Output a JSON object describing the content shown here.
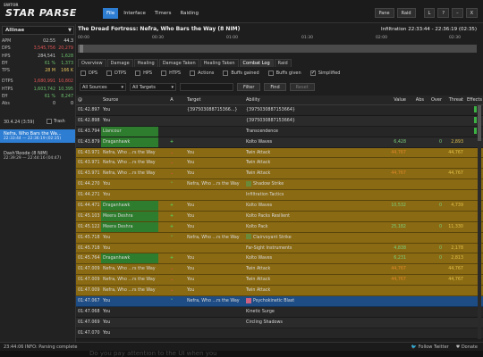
{
  "app": {
    "logo_small": "SWTOR",
    "logo": "STAR PARSE",
    "menu": [
      "File",
      "Interface",
      "Timers",
      "Raiding"
    ],
    "window_buttons": [
      "Pane",
      "Raid",
      "L",
      "?",
      "–",
      "X"
    ]
  },
  "left": {
    "raid_select": "Allinae",
    "stats": [
      {
        "k": "APM",
        "v1": "02:55",
        "v2": "44.3",
        "c1": "",
        "c2": ""
      },
      {
        "k": "DPS",
        "v1": "3,545,756",
        "v2": "20,279",
        "c1": "red",
        "c2": "red"
      },
      {
        "k": "HPS",
        "v1": "284,541",
        "v2": "1,628",
        "c1": "",
        "c2": "green"
      },
      {
        "k": "Eff",
        "v1": "61 %",
        "v2": "1,373",
        "c1": "green",
        "c2": "green"
      },
      {
        "k": "TPS",
        "v1": "28 M",
        "v2": "166 K",
        "c1": "yellow",
        "c2": "yellow"
      },
      {
        "k": "DTPS",
        "v1": "1,680,991",
        "v2": "10,802",
        "c1": "red",
        "c2": "red"
      },
      {
        "k": "HTPS",
        "v1": "1,603,742",
        "v2": "10,395",
        "c1": "green",
        "c2": "green"
      },
      {
        "k": "Eff",
        "v1": "61 %",
        "v2": "8,247",
        "c1": "green",
        "c2": "green"
      },
      {
        "k": "Abs",
        "v1": "0",
        "v2": "0",
        "c1": "",
        "c2": ""
      }
    ],
    "combat_time": "30.4.24 (3:59)",
    "trash_label": "Trash",
    "encounters": [
      {
        "name": "Nefra, Who Bars the Wa...",
        "time": "22:33:44 — 22:36:19 (02:35)",
        "selected": true
      },
      {
        "name": "Dash'Roode (8 NIM)",
        "time": "22:39:29 — 22:44:16 (04:47)",
        "selected": false
      }
    ]
  },
  "header": {
    "title": "The Dread Fortress: Nefra, Who Bars the Way (8 NIM)",
    "infiltration": "Infiltration 22:33:44 - 22:36:19 (02:35)",
    "timeline_labels": [
      "00:00",
      "00:30",
      "01:00",
      "01:30",
      "02:00",
      "02:30"
    ]
  },
  "tabs": [
    "Overview",
    "Damage",
    "Healing",
    "Damage Taken",
    "Healing Taken",
    "Combat Log",
    "Raid"
  ],
  "filters": [
    "DPS",
    "DTPS",
    "HPS",
    "HTPS",
    "Actions",
    "Buffs gained",
    "Buffs given",
    "Simplified"
  ],
  "controls": {
    "sources": "All Sources",
    "targets": "All Targets",
    "filter": "Filter",
    "find": "Find",
    "reset": "Reset"
  },
  "table": {
    "headers": [
      "@",
      "Source",
      "A",
      "Target",
      "Ability",
      "Value",
      "Abs",
      "Over",
      "Threat",
      "Effects"
    ],
    "rows": [
      {
        "ts": "01:42.897",
        "src": "You",
        "arr": "",
        "tgt": "{397503088715366...}",
        "abil": "{3975030887153664}",
        "val": "",
        "abs": "",
        "over": "",
        "thr": "",
        "eff": true,
        "style": "dark",
        "srcg": false,
        "vc": "",
        "ab": ""
      },
      {
        "ts": "01:42.898",
        "src": "You",
        "arr": "",
        "tgt": "",
        "abil": "{3975030887153664}",
        "val": "",
        "abs": "",
        "over": "",
        "thr": "",
        "eff": true,
        "style": "dark2",
        "srcg": false,
        "vc": "",
        "ab": ""
      },
      {
        "ts": "01:43.794",
        "src": "Llancour",
        "arr": "",
        "tgt": "",
        "abil": "Transcendence",
        "val": "",
        "abs": "",
        "over": "",
        "thr": "",
        "eff": true,
        "style": "dark",
        "srcg": true,
        "vc": "",
        "ab": ""
      },
      {
        "ts": "01:43.879",
        "src": "Draganhawk",
        "arr": "+",
        "tgt": "",
        "abil": "Kolto Waves",
        "val": "6,428",
        "abs": "",
        "over": "0",
        "thr": "2,893",
        "eff": false,
        "style": "dark2",
        "srcg": true,
        "vc": "green",
        "ab": ""
      },
      {
        "ts": "01:43.971",
        "src": "Nefra, Who ...rs the Way",
        "arr": "⌄",
        "tgt": "You",
        "abil": "Twin Attack",
        "val": "44,767",
        "abs": "",
        "over": "",
        "thr": "44,767",
        "eff": false,
        "style": "gold",
        "srcg": false,
        "vc": "orange",
        "ab": ""
      },
      {
        "ts": "01:43.971",
        "src": "Nefra, Who ...rs the Way",
        "arr": "⌄",
        "tgt": "You",
        "abil": "Twin Attack",
        "val": "",
        "abs": "",
        "over": "",
        "thr": "",
        "eff": false,
        "style": "gold",
        "srcg": false,
        "vc": "",
        "ab": ""
      },
      {
        "ts": "01:43.971",
        "src": "Nefra, Who ...rs the Way",
        "arr": "⌄",
        "tgt": "You",
        "abil": "Twin Attack",
        "val": "44,767",
        "abs": "",
        "over": "",
        "thr": "44,767",
        "eff": false,
        "style": "gold",
        "srcg": false,
        "vc": "orange",
        "ab": ""
      },
      {
        "ts": "01:44.270",
        "src": "You",
        "arr": "⌃",
        "tgt": "Nefra, Who ...rs the Way",
        "abil": "Shadow Strike",
        "val": "",
        "abs": "",
        "over": "",
        "thr": "",
        "eff": false,
        "style": "gold",
        "srcg": false,
        "vc": "",
        "ab": "green"
      },
      {
        "ts": "01:44.271",
        "src": "You",
        "arr": "",
        "tgt": "",
        "abil": "Infiltration Tactics",
        "val": "",
        "abs": "",
        "over": "",
        "thr": "",
        "eff": false,
        "style": "gold",
        "srcg": false,
        "vc": "",
        "ab": ""
      },
      {
        "ts": "01:44.471",
        "src": "Draganhawk",
        "arr": "+",
        "tgt": "You",
        "abil": "Kolto Waves",
        "val": "10,532",
        "abs": "",
        "over": "0",
        "thr": "4,739",
        "eff": false,
        "style": "gold",
        "srcg": true,
        "vc": "green",
        "ab": ""
      },
      {
        "ts": "01:45.103",
        "src": "Meera Deshra",
        "arr": "+",
        "tgt": "You",
        "abil": "Kolto Packs Resilient",
        "val": "",
        "abs": "",
        "over": "",
        "thr": "",
        "eff": false,
        "style": "gold",
        "srcg": true,
        "vc": "",
        "ab": ""
      },
      {
        "ts": "01:45.122",
        "src": "Meera Deshra",
        "arr": "+",
        "tgt": "You",
        "abil": "Kolto Pack",
        "val": "25,182",
        "abs": "",
        "over": "0",
        "thr": "11,330",
        "eff": false,
        "style": "gold",
        "srcg": true,
        "vc": "green",
        "ab": ""
      },
      {
        "ts": "01:45.718",
        "src": "You",
        "arr": "⌃",
        "tgt": "Nefra, Who ...rs the Way",
        "abil": "Clairvoyant Strike",
        "val": "",
        "abs": "",
        "over": "",
        "thr": "",
        "eff": false,
        "style": "gold",
        "srcg": false,
        "vc": "",
        "ab": "green"
      },
      {
        "ts": "01:45.718",
        "src": "You",
        "arr": "",
        "tgt": "",
        "abil": "Far-Sight Instruments",
        "val": "4,838",
        "abs": "",
        "over": "0",
        "thr": "2,178",
        "eff": false,
        "style": "gold",
        "srcg": false,
        "vc": "green",
        "ab": ""
      },
      {
        "ts": "01:45.764",
        "src": "Draganhawk",
        "arr": "+",
        "tgt": "You",
        "abil": "Kolto Waves",
        "val": "6,231",
        "abs": "",
        "over": "0",
        "thr": "2,813",
        "eff": false,
        "style": "gold",
        "srcg": true,
        "vc": "green",
        "ab": ""
      },
      {
        "ts": "01:47.009",
        "src": "Nefra, Who ...rs the Way",
        "arr": "⌄",
        "tgt": "You",
        "abil": "Twin Attack",
        "val": "44,767",
        "abs": "",
        "over": "",
        "thr": "44,767",
        "eff": false,
        "style": "gold",
        "srcg": false,
        "vc": "orange",
        "ab": ""
      },
      {
        "ts": "01:47.009",
        "src": "Nefra, Who ...rs the Way",
        "arr": "⌄",
        "tgt": "You",
        "abil": "Twin Attack",
        "val": "44,767",
        "abs": "",
        "over": "",
        "thr": "44,767",
        "eff": false,
        "style": "gold",
        "srcg": false,
        "vc": "orange",
        "ab": ""
      },
      {
        "ts": "01:47.009",
        "src": "Nefra, Who ...rs the Way",
        "arr": "⌄",
        "tgt": "You",
        "abil": "Twin Attack",
        "val": "",
        "abs": "",
        "over": "",
        "thr": "",
        "eff": false,
        "style": "gold",
        "srcg": false,
        "vc": "",
        "ab": ""
      },
      {
        "ts": "01:47.067",
        "src": "You",
        "arr": "⌃",
        "tgt": "Nefra, Who ...rs the Way",
        "abil": "Psychokinetic Blast",
        "val": "",
        "abs": "",
        "over": "",
        "thr": "",
        "eff": false,
        "style": "selected",
        "srcg": false,
        "vc": "",
        "ab": "pink"
      },
      {
        "ts": "01:47.068",
        "src": "You",
        "arr": "",
        "tgt": "",
        "abil": "Kinetic Surge",
        "val": "",
        "abs": "",
        "over": "",
        "thr": "",
        "eff": false,
        "style": "dark",
        "srcg": false,
        "vc": "",
        "ab": ""
      },
      {
        "ts": "01:47.069",
        "src": "You",
        "arr": "",
        "tgt": "",
        "abil": "Circling Shadows",
        "val": "",
        "abs": "",
        "over": "",
        "thr": "",
        "eff": false,
        "style": "dark2",
        "srcg": false,
        "vc": "",
        "ab": ""
      },
      {
        "ts": "01:47.070",
        "src": "You",
        "arr": "",
        "tgt": "",
        "abil": "",
        "val": "",
        "abs": "",
        "over": "",
        "thr": "",
        "eff": false,
        "style": "dark",
        "srcg": false,
        "vc": "",
        "ab": ""
      }
    ]
  },
  "status": {
    "text": "23:44:06 INFO: Parsing complete",
    "twitter": "Follow Twitter",
    "donate": "Donate"
  },
  "footer_text": "Do you pay attention to the UI when you"
}
